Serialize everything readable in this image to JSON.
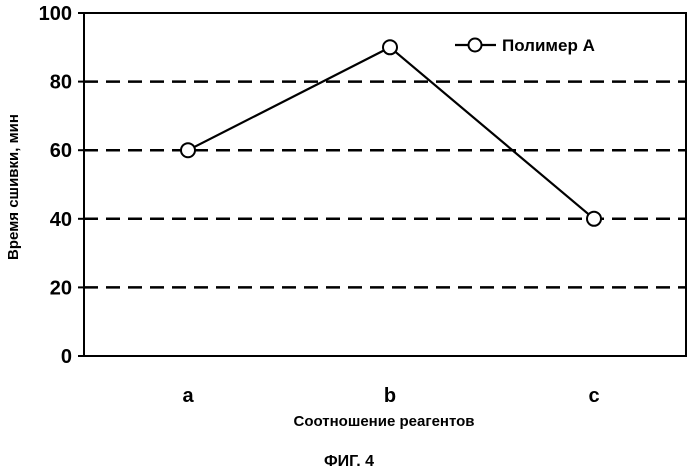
{
  "chart_data": {
    "type": "line",
    "categories": [
      "a",
      "b",
      "c"
    ],
    "series": [
      {
        "name": "Полимер А",
        "values": [
          60,
          90,
          40
        ]
      }
    ],
    "xlabel": "Соотношение реагентов",
    "ylabel": "Время сшивки, мин",
    "ylim": [
      0,
      100
    ],
    "yticks": [
      0,
      20,
      40,
      60,
      80,
      100
    ],
    "grid": "horizontal dashed",
    "legend": "top-right",
    "line_color": "#000000"
  },
  "caption": "ФИГ. 4"
}
